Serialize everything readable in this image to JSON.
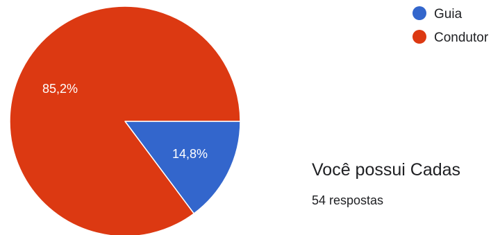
{
  "question": {
    "title": "Você possui Cadas",
    "responses": "54 respostas"
  },
  "chart_data": {
    "type": "pie",
    "slices": [
      {
        "label": "Guia",
        "value": 14.8,
        "display": "14,8%",
        "color": "#3366cc"
      },
      {
        "label": "Condutor",
        "value": 85.2,
        "display": "85,2%",
        "color": "#dc3912"
      }
    ],
    "start_angle_deg": 0,
    "direction": "clockwise",
    "legend_position": "top-right"
  }
}
